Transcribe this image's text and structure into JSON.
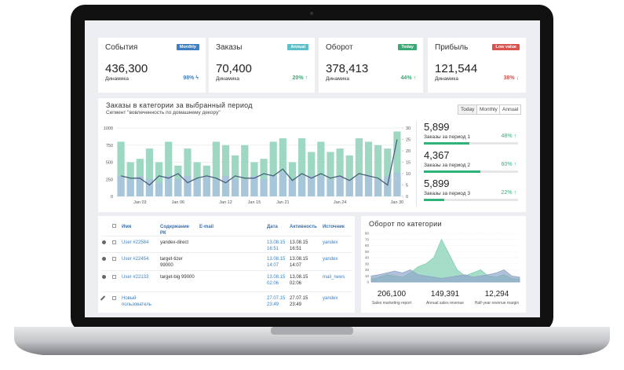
{
  "kpis": [
    {
      "title": "События",
      "badge": "Monthly",
      "badge_color": "#3d7fc1",
      "value": "436,300",
      "label": "Динамика",
      "change": "98% ϟ",
      "change_color": "#3d7fc1"
    },
    {
      "title": "Заказы",
      "badge": "Annual",
      "badge_color": "#5bc0c8",
      "value": "70,400",
      "label": "Динамика",
      "change": "20% ↑",
      "change_color": "#3aa876"
    },
    {
      "title": "Оборот",
      "badge": "Today",
      "badge_color": "#3aa876",
      "value": "378,413",
      "label": "Динамика",
      "change": "44% ↑",
      "change_color": "#3aa876"
    },
    {
      "title": "Прибыль",
      "badge": "Low value",
      "badge_color": "#d9534f",
      "value": "121,544",
      "label": "Динамика",
      "change": "38% ↓",
      "change_color": "#d9534f"
    }
  ],
  "orders_panel": {
    "title": "Заказы в категории за выбранный период",
    "subtitle": "Сегмент \"вовлеченность по домашнему декору\"",
    "buttons": [
      "Today",
      "Monthly",
      "Annual"
    ]
  },
  "period_stats": [
    {
      "value": "5,899",
      "label": "Заказы за период 1",
      "percent": 48,
      "percent_label": "48% ↑"
    },
    {
      "value": "4,367",
      "label": "Заказы за период 2",
      "percent": 60,
      "percent_label": "60% ↑"
    },
    {
      "value": "5,899",
      "label": "Заказы за период 3",
      "percent": 22,
      "percent_label": "22% ↑"
    }
  ],
  "progress_color": "#2fb37a",
  "table": {
    "headers": [
      "Имя",
      "Содержание РК",
      "E-mail",
      "Дата",
      "Активность",
      "Источник"
    ],
    "rows": [
      [
        "User #22584",
        "yandex-direct",
        null,
        "13.08.15 16:51",
        "13.08.15 16:51",
        "yandex"
      ],
      [
        "User #22454",
        "target-tizer 99000",
        null,
        "13.08.15 14:07",
        "13.08.15 14:07",
        "yandex"
      ],
      [
        "User #22133",
        "target-big 99000",
        null,
        "13.08.15 02:06",
        "13.08.15 02:06",
        "mail_news"
      ],
      [
        "Новый пользователь",
        null,
        null,
        "27.07.15 23:49",
        "27.07.15 23:49",
        "yandex"
      ]
    ]
  },
  "category_panel": {
    "title": "Оборот по категории"
  },
  "summary": [
    {
      "value": "206,100",
      "label": "Sales marketing report"
    },
    {
      "value": "149,391",
      "label": "Annual sales revenue"
    },
    {
      "value": "12,294",
      "label": "Half-year revenue margin"
    }
  ],
  "chart_data": [
    {
      "type": "bar",
      "grid": true,
      "categories": [
        null,
        null,
        "Jan 03",
        null,
        null,
        null,
        "Jan 06",
        null,
        null,
        null,
        null,
        "Jan 12",
        null,
        null,
        "Jan 15",
        null,
        null,
        "Jan 21",
        null,
        null,
        null,
        null,
        null,
        "Jan 24",
        null,
        null,
        null,
        null,
        null,
        "Jan 30"
      ],
      "series": [
        {
          "color": "#9fd8c2",
          "values": [
            800,
            500,
            550,
            700,
            500,
            800,
            450,
            700,
            500,
            450,
            800,
            750,
            600,
            750,
            500,
            550,
            800,
            850,
            500,
            850,
            650,
            800,
            650,
            700,
            600,
            850,
            800,
            750,
            700,
            950
          ]
        },
        {
          "color": "#a9c3dd",
          "values": [
            300,
            250,
            300,
            250,
            200,
            300,
            250,
            300,
            250,
            300,
            250,
            300,
            250,
            250,
            300,
            250,
            300,
            350,
            250,
            300,
            300,
            300,
            250,
            300,
            250,
            300,
            300,
            250,
            300,
            350
          ]
        },
        {
          "color": "#4a607d",
          "axis": "y2",
          "values": [
            9,
            8,
            8,
            5,
            9,
            8,
            10,
            6,
            8,
            9,
            8,
            6,
            9,
            8,
            8,
            10,
            9,
            12,
            7,
            10,
            8,
            10,
            8,
            9,
            7,
            10,
            9,
            8,
            5,
            25
          ]
        }
      ],
      "ylim": [
        0,
        1000
      ],
      "yticks": [
        0,
        250,
        500,
        750,
        1000
      ],
      "y2lim": [
        0,
        30
      ],
      "y2ticks": [
        0,
        5,
        10,
        15,
        20,
        25,
        30
      ]
    },
    {
      "type": "area",
      "grid": true,
      "series": [
        {
          "color": "#7fcfb0",
          "values": [
            5,
            8,
            12,
            10,
            8,
            15,
            25,
            30,
            40,
            70,
            45,
            20,
            10,
            15,
            20,
            10,
            8,
            12,
            6,
            5
          ]
        },
        {
          "color": "#8fa6c9",
          "values": [
            10,
            12,
            15,
            18,
            15,
            20,
            12,
            10,
            8,
            6,
            8,
            10,
            12,
            8,
            10,
            12,
            15,
            20,
            10,
            8
          ]
        }
      ],
      "ylim": [
        0,
        80
      ],
      "yticks": [
        0,
        10,
        20,
        30,
        40,
        50,
        60,
        70,
        80
      ]
    }
  ]
}
